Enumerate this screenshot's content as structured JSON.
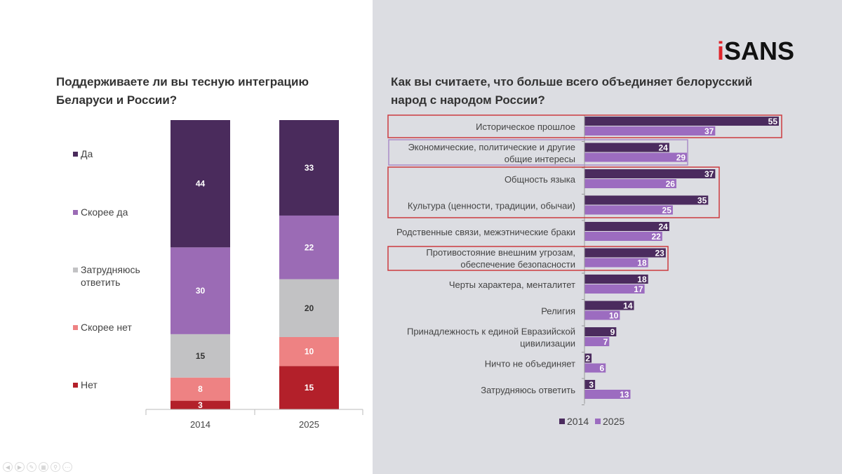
{
  "logo": {
    "text_i": "i",
    "text_rest": "SANS"
  },
  "colors": {
    "background_right": "#dcdde2",
    "highlight_red": "#cc3b3f",
    "highlight_purple": "#a98cc8"
  },
  "chart_data": [
    {
      "type": "bar",
      "stacked": true,
      "title": "Поддерживаете ли вы тесную интеграцию Беларуси и России?",
      "categories": [
        "2014",
        "2025"
      ],
      "ylim": [
        0,
        100
      ],
      "legend_placement": "left",
      "series": [
        {
          "name": "Нет",
          "color": "#b3202a",
          "values": [
            3,
            15
          ],
          "label_color": "#ffffff"
        },
        {
          "name": "Скорее нет",
          "color": "#ee8283",
          "values": [
            8,
            10
          ],
          "label_color": "#ffffff"
        },
        {
          "name": "Затрудняюсь ответить",
          "color": "#c2c2c4",
          "values": [
            15,
            20
          ],
          "label_color": "#333333"
        },
        {
          "name": "Скорее да",
          "color": "#9b6bb5",
          "values": [
            30,
            22
          ],
          "label_color": "#ffffff"
        },
        {
          "name": "Да",
          "color": "#4a2b5c",
          "values": [
            44,
            33
          ],
          "label_color": "#ffffff"
        }
      ]
    },
    {
      "type": "bar",
      "orientation": "horizontal",
      "title": "Как вы считаете, что больше всего объединяет белорусский народ с народом России?",
      "xlim": [
        0,
        55
      ],
      "legend_placement": "bottom",
      "categories": [
        [
          "Историческое прошлое"
        ],
        [
          "Экономические, политические и другие",
          "общие интересы"
        ],
        [
          "Общность языка"
        ],
        [
          "Культура (ценности, традиции, обычаи)"
        ],
        [
          "Родственные связи, межэтнические браки"
        ],
        [
          "Противостояние внешним угрозам,",
          "обеспечение безопасности"
        ],
        [
          "Черты характера, менталитет"
        ],
        [
          "Религия"
        ],
        [
          "Принадлежность к единой Евразийской",
          "цивилизации"
        ],
        [
          "Ничто не объединяет"
        ],
        [
          "Затрудняюсь ответить"
        ]
      ],
      "series": [
        {
          "name": "2014",
          "color": "#4b2b5e",
          "values": [
            55,
            24,
            37,
            35,
            24,
            23,
            18,
            14,
            9,
            2,
            3
          ]
        },
        {
          "name": "2025",
          "color": "#9c6cc0",
          "values": [
            37,
            29,
            26,
            25,
            22,
            18,
            17,
            10,
            7,
            6,
            13
          ]
        }
      ],
      "highlights": [
        {
          "rows": [
            0
          ],
          "color": "red"
        },
        {
          "rows": [
            1
          ],
          "color": "purple"
        },
        {
          "rows": [
            2,
            3
          ],
          "color": "red"
        },
        {
          "rows": [
            5
          ],
          "color": "red"
        }
      ]
    }
  ],
  "legend_left": [
    "Да",
    "Скорее да",
    "Затрудняюсь ответить",
    "Скорее нет",
    "Нет"
  ]
}
